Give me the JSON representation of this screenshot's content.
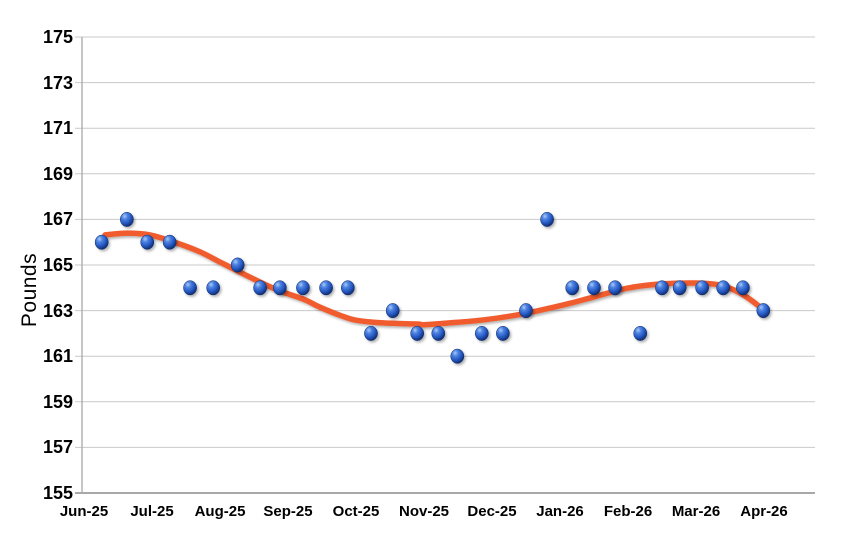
{
  "chart_data": {
    "type": "scatter",
    "title": "",
    "ylabel": "Pounds",
    "xlabel": "",
    "ylim": [
      155,
      175
    ],
    "y_ticks": [
      155,
      157,
      159,
      161,
      163,
      165,
      167,
      169,
      171,
      173,
      175
    ],
    "x_categories": [
      "Jun-25",
      "Jul-25",
      "Aug-25",
      "Sep-25",
      "Oct-25",
      "Nov-25",
      "Dec-25",
      "Jan-26",
      "Feb-26",
      "Mar-26",
      "Apr-26"
    ],
    "x_unit_note": "points.x is in months after the Jun-25 tick (0 = Jun-25, 10 = Apr-26)",
    "grid": true,
    "legend_position": "none",
    "points": [
      {
        "x": 0.26,
        "y": 166
      },
      {
        "x": 0.63,
        "y": 167
      },
      {
        "x": 0.93,
        "y": 166
      },
      {
        "x": 1.26,
        "y": 166
      },
      {
        "x": 1.56,
        "y": 164
      },
      {
        "x": 1.9,
        "y": 164
      },
      {
        "x": 2.26,
        "y": 165
      },
      {
        "x": 2.59,
        "y": 164
      },
      {
        "x": 2.88,
        "y": 164
      },
      {
        "x": 3.22,
        "y": 164
      },
      {
        "x": 3.56,
        "y": 164
      },
      {
        "x": 3.88,
        "y": 164
      },
      {
        "x": 4.22,
        "y": 162
      },
      {
        "x": 4.54,
        "y": 163
      },
      {
        "x": 4.9,
        "y": 162
      },
      {
        "x": 5.21,
        "y": 162
      },
      {
        "x": 5.49,
        "y": 161
      },
      {
        "x": 5.85,
        "y": 162
      },
      {
        "x": 6.16,
        "y": 162
      },
      {
        "x": 6.5,
        "y": 163
      },
      {
        "x": 6.81,
        "y": 167
      },
      {
        "x": 7.18,
        "y": 164
      },
      {
        "x": 7.5,
        "y": 164
      },
      {
        "x": 7.81,
        "y": 164
      },
      {
        "x": 8.18,
        "y": 162
      },
      {
        "x": 8.5,
        "y": 164
      },
      {
        "x": 8.76,
        "y": 164
      },
      {
        "x": 9.09,
        "y": 164
      },
      {
        "x": 9.4,
        "y": 164
      },
      {
        "x": 9.69,
        "y": 164
      },
      {
        "x": 9.99,
        "y": 163
      }
    ],
    "trendline": {
      "type": "smooth",
      "color": "#F15B2E",
      "width": 5.5,
      "points": [
        [
          0.31,
          166.32
        ],
        [
          0.63,
          166.4
        ],
        [
          0.97,
          166.32
        ],
        [
          1.37,
          165.96
        ],
        [
          1.71,
          165.57
        ],
        [
          2.0,
          165.13
        ],
        [
          2.29,
          164.69
        ],
        [
          2.59,
          164.25
        ],
        [
          2.88,
          163.86
        ],
        [
          3.22,
          163.51
        ],
        [
          3.47,
          163.15
        ],
        [
          3.76,
          162.8
        ],
        [
          4.0,
          162.58
        ],
        [
          4.4,
          162.46
        ],
        [
          4.9,
          162.41
        ],
        [
          5.0,
          162.38
        ],
        [
          5.38,
          162.46
        ],
        [
          5.87,
          162.59
        ],
        [
          6.37,
          162.81
        ],
        [
          6.85,
          163.11
        ],
        [
          7.16,
          163.33
        ],
        [
          7.5,
          163.6
        ],
        [
          8.0,
          163.99
        ],
        [
          8.5,
          164.17
        ],
        [
          9.0,
          164.21
        ],
        [
          9.35,
          164.12
        ],
        [
          9.65,
          163.77
        ],
        [
          9.94,
          163.16
        ],
        [
          9.99,
          162.94
        ]
      ]
    },
    "marker": {
      "style": "glossy-sphere",
      "color": "#2559C4",
      "highlight_color": "#A8CBF7",
      "edge_color": "#102B68",
      "radius_px": 7
    },
    "grid_color": "#C9C9C9",
    "axis_color": "#A8A8A8",
    "text_color": "#000000",
    "background_color": "#FFFFFF"
  }
}
